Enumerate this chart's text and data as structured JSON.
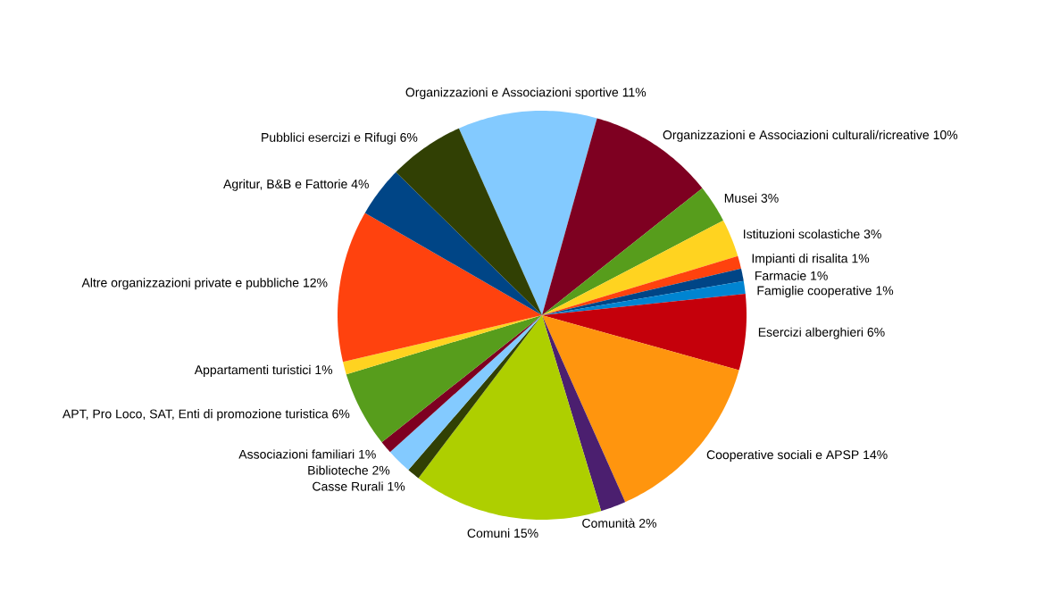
{
  "chart_data": {
    "type": "pie",
    "categories": [
      "Organizzazioni e Associazioni sportive",
      "Organizzazioni e Associazioni culturali/ricreative",
      "Musei",
      "Istituzioni scolastiche",
      "Impianti di risalita",
      "Farmacie",
      "Famiglie cooperative",
      "Esercizi alberghieri",
      "Cooperative sociali e APSP",
      "Comunità",
      "Comuni",
      "Casse Rurali",
      "Biblioteche",
      "Associazioni familiari",
      "APT, Pro Loco, SAT, Enti di promozione turistica",
      "Appartamenti turistici",
      "Altre organizzazioni private e pubbliche",
      "Agritur, B&B e Fattorie",
      "Pubblici esercizi e Rifugi"
    ],
    "values": [
      11,
      10,
      3,
      3,
      1,
      1,
      1,
      6,
      14,
      2,
      15,
      1,
      2,
      1,
      6,
      1,
      12,
      4,
      6
    ],
    "value_labels": [
      "11%",
      "10%",
      "3%",
      "3%",
      "1%",
      "1%",
      "1%",
      "6%",
      "14%",
      "2%",
      "15%",
      "1%",
      "2%",
      "1%",
      "6%",
      "1%",
      "12%",
      "4%",
      "6%"
    ],
    "colors": [
      "#83caff",
      "#7e0021",
      "#579d1c",
      "#ffd320",
      "#ff420e",
      "#004586",
      "#0084d1",
      "#c5000b",
      "#ff950e",
      "#4b1f6f",
      "#aecf00",
      "#314004",
      "#83caff",
      "#7e0021",
      "#579d1c",
      "#ffd320",
      "#ff420e",
      "#004586",
      "#314004"
    ]
  }
}
